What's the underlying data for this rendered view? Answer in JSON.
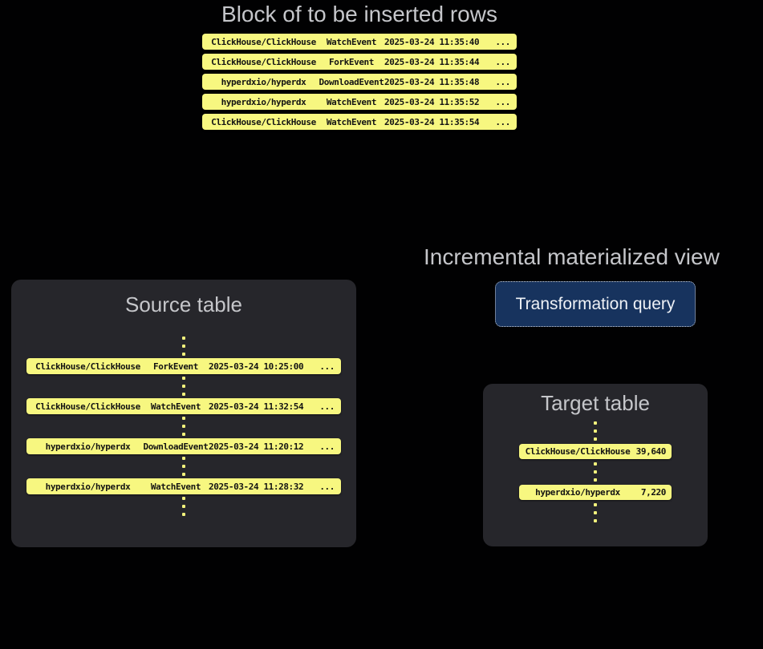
{
  "colors": {
    "background": "#010102",
    "row_yellow": "#f7f780",
    "row_text": "#131313",
    "panel_bg": "#26262b",
    "title_gray": "#c5c6ca",
    "query_box_bg": "#17335e",
    "query_box_border": "#c9ced6",
    "query_box_text": "#eef1f6",
    "dot_yellow": "#f2f27c"
  },
  "insert_block": {
    "title": "Block of to be inserted rows",
    "rows": [
      {
        "repo": "ClickHouse/ClickHouse",
        "event": "WatchEvent",
        "time": "2025-03-24 11:35:40",
        "more": "..."
      },
      {
        "repo": "ClickHouse/ClickHouse",
        "event": "ForkEvent",
        "time": "2025-03-24 11:35:44",
        "more": "..."
      },
      {
        "repo": "hyperdxio/hyperdx",
        "event": "DownloadEvent",
        "time": "2025-03-24 11:35:48",
        "more": "..."
      },
      {
        "repo": "hyperdxio/hyperdx",
        "event": "WatchEvent",
        "time": "2025-03-24 11:35:52",
        "more": "..."
      },
      {
        "repo": "ClickHouse/ClickHouse",
        "event": "WatchEvent",
        "time": "2025-03-24 11:35:54",
        "more": "..."
      }
    ]
  },
  "source_table": {
    "title": "Source table",
    "rows": [
      {
        "repo": "ClickHouse/ClickHouse",
        "event": "ForkEvent",
        "time": "2025-03-24 10:25:00",
        "more": "..."
      },
      {
        "repo": "ClickHouse/ClickHouse",
        "event": "WatchEvent",
        "time": "2025-03-24 11:32:54",
        "more": "..."
      },
      {
        "repo": "hyperdxio/hyperdx",
        "event": "DownloadEvent",
        "time": "2025-03-24 11:20:12",
        "more": "..."
      },
      {
        "repo": "hyperdxio/hyperdx",
        "event": "WatchEvent",
        "time": "2025-03-24 11:28:32",
        "more": "..."
      }
    ]
  },
  "materialized_view": {
    "title": "Incremental materialized view",
    "query_box_label": "Transformation query"
  },
  "target_table": {
    "title": "Target table",
    "rows": [
      {
        "repo": "ClickHouse/ClickHouse",
        "count": "39,640"
      },
      {
        "repo": "hyperdxio/hyperdx",
        "count": "7,220"
      }
    ]
  }
}
